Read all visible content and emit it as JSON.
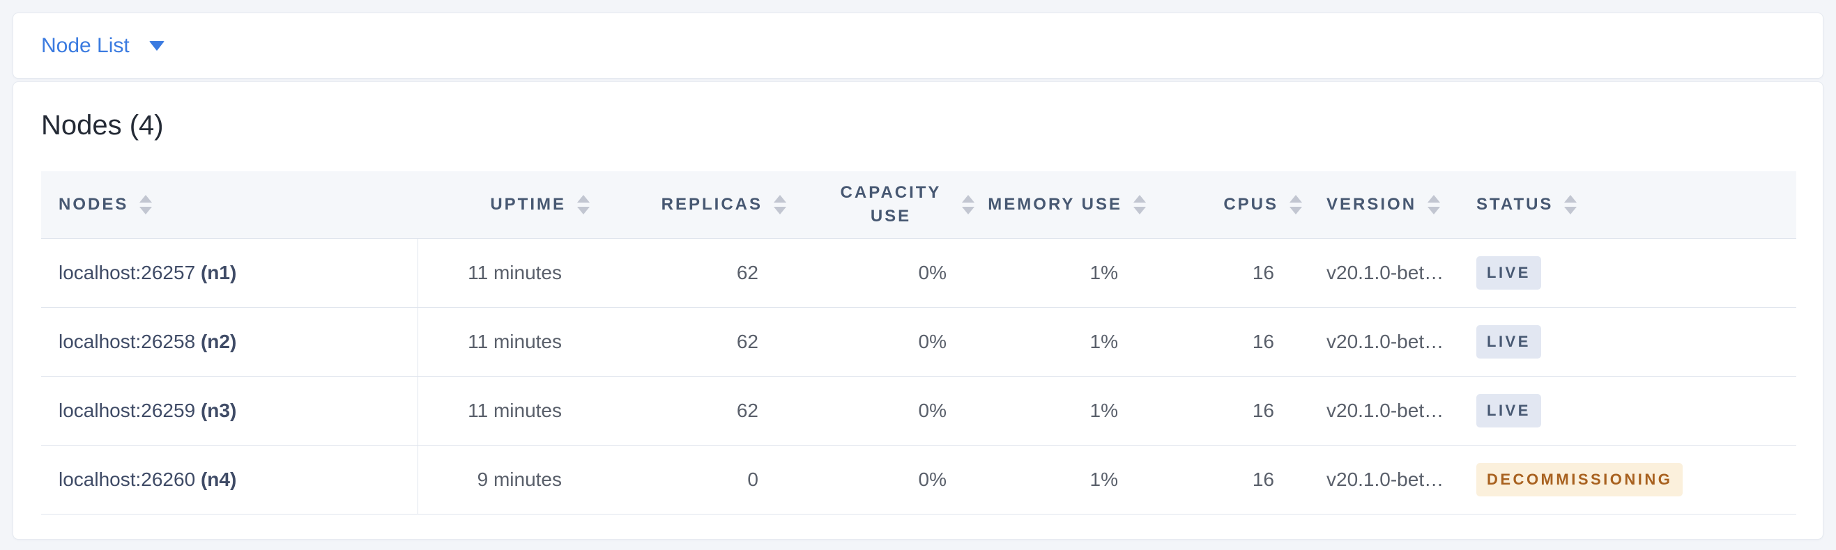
{
  "view_selector": {
    "label": "Node List"
  },
  "content": {
    "title": "Nodes (4)",
    "table": {
      "columns": [
        {
          "key": "nodes",
          "label": "NODES",
          "align": "left",
          "sortable": true
        },
        {
          "key": "uptime",
          "label": "UPTIME",
          "align": "right",
          "sortable": true
        },
        {
          "key": "replicas",
          "label": "REPLICAS",
          "align": "right",
          "sortable": true
        },
        {
          "key": "capacity-use",
          "label": "CAPACITY USE",
          "align": "center-right",
          "sortable": true,
          "two_line": true
        },
        {
          "key": "memory-use",
          "label": "MEMORY USE",
          "align": "right",
          "sortable": true
        },
        {
          "key": "cpus",
          "label": "CPUS",
          "align": "right",
          "sortable": true
        },
        {
          "key": "version",
          "label": "VERSION",
          "align": "left",
          "sortable": true
        },
        {
          "key": "status",
          "label": "STATUS",
          "align": "left",
          "sortable": true
        }
      ],
      "rows": [
        {
          "address": "localhost:26257",
          "node_id": "(n1)",
          "uptime": "11 minutes",
          "replicas": "62",
          "capacity_use": "0%",
          "memory_use": "1%",
          "cpus": "16",
          "version": "v20.1.0-bet…",
          "status": "LIVE",
          "status_type": "live"
        },
        {
          "address": "localhost:26258",
          "node_id": "(n2)",
          "uptime": "11 minutes",
          "replicas": "62",
          "capacity_use": "0%",
          "memory_use": "1%",
          "cpus": "16",
          "version": "v20.1.0-bet…",
          "status": "LIVE",
          "status_type": "live"
        },
        {
          "address": "localhost:26259",
          "node_id": "(n3)",
          "uptime": "11 minutes",
          "replicas": "62",
          "capacity_use": "0%",
          "memory_use": "1%",
          "cpus": "16",
          "version": "v20.1.0-bet…",
          "status": "LIVE",
          "status_type": "live"
        },
        {
          "address": "localhost:26260",
          "node_id": "(n4)",
          "uptime": "9 minutes",
          "replicas": "0",
          "capacity_use": "0%",
          "memory_use": "1%",
          "cpus": "16",
          "version": "v20.1.0-bet…",
          "status": "DECOMMISSIONING",
          "status_type": "decommissioning"
        }
      ]
    }
  },
  "colors": {
    "accent_blue": "#3b7be0",
    "page_background": "#f3f5f9",
    "header_background": "#f5f7fa",
    "header_text": "#475872",
    "live_badge_bg": "#e2e7f2",
    "live_badge_text": "#475872",
    "decommissioning_badge_bg": "#fbf0dc",
    "decommissioning_badge_text": "#a8611f"
  }
}
